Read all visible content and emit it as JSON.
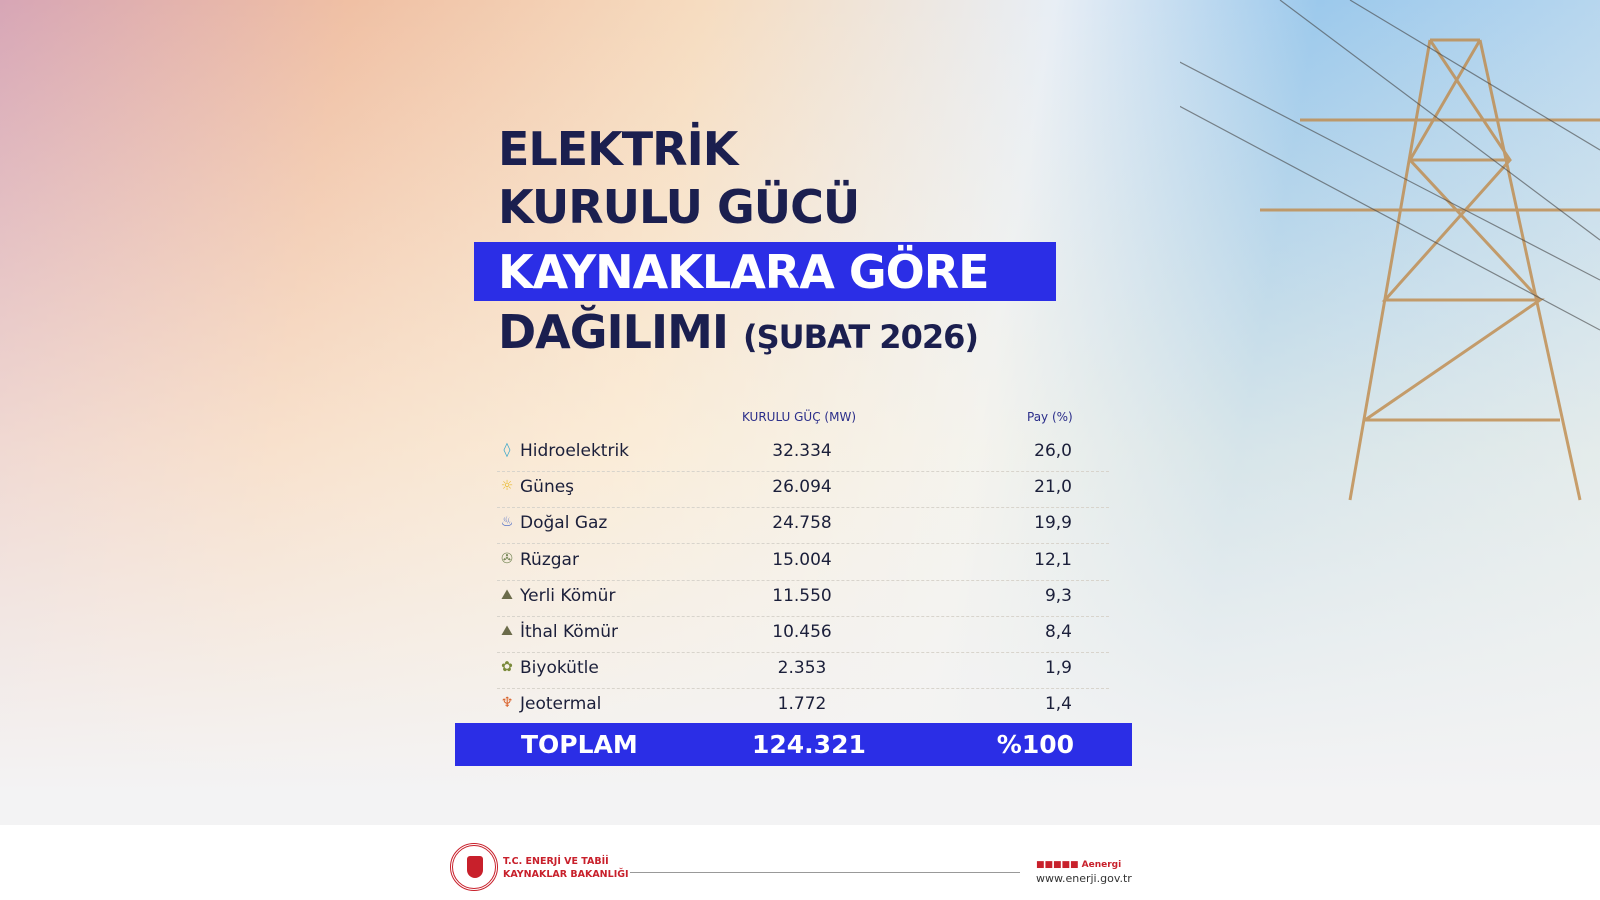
{
  "title": {
    "line1": "ELEKTRİK",
    "line2": "KURULU GÜCÜ",
    "line3": "KAYNAKLARA GÖRE",
    "line4": "DAĞILIMI",
    "period": "(ŞUBAT 2026)"
  },
  "table": {
    "headers": {
      "capacity": "KURULU GÜÇ (MW)",
      "share": "Pay (%)"
    },
    "rows": [
      {
        "name": "Hidroelektrik",
        "mw": "32.334",
        "pct": "26,0",
        "icon": "water-drop-icon",
        "color": "#3aa6c9"
      },
      {
        "name": "Güneş",
        "mw": "26.094",
        "pct": "21,0",
        "icon": "sun-icon",
        "color": "#e8b928"
      },
      {
        "name": "Doğal Gaz",
        "mw": "24.758",
        "pct": "19,9",
        "icon": "gas-flame-icon",
        "color": "#3a5fc4"
      },
      {
        "name": "Rüzgar",
        "mw": "15.004",
        "pct": "12,1",
        "icon": "wind-turbine-icon",
        "color": "#7a8a5a"
      },
      {
        "name": "Yerli Kömür",
        "mw": "11.550",
        "pct": "9,3",
        "icon": "coal-icon",
        "color": "#6b6b4a"
      },
      {
        "name": "İthal Kömür",
        "mw": "10.456",
        "pct": "8,4",
        "icon": "coal-icon",
        "color": "#6b6b4a"
      },
      {
        "name": "Biyokütle",
        "mw": "2.353",
        "pct": "1,9",
        "icon": "biomass-icon",
        "color": "#7a8a3a"
      },
      {
        "name": "Jeotermal",
        "mw": "1.772",
        "pct": "1,4",
        "icon": "geothermal-icon",
        "color": "#d9622b"
      }
    ],
    "total": {
      "label": "TOPLAM",
      "mw": "124.321",
      "pct": "%100"
    }
  },
  "footer": {
    "ministry_line1": "T.C. ENERJİ VE TABİİ",
    "ministry_line2": "KAYNAKLAR BAKANLIĞI",
    "social": "Aenergi",
    "url": "www.enerji.gov.tr"
  },
  "colors": {
    "navy": "#1b1f4f",
    "accent": "#2b2ee6",
    "brand_red": "#c8202b"
  }
}
